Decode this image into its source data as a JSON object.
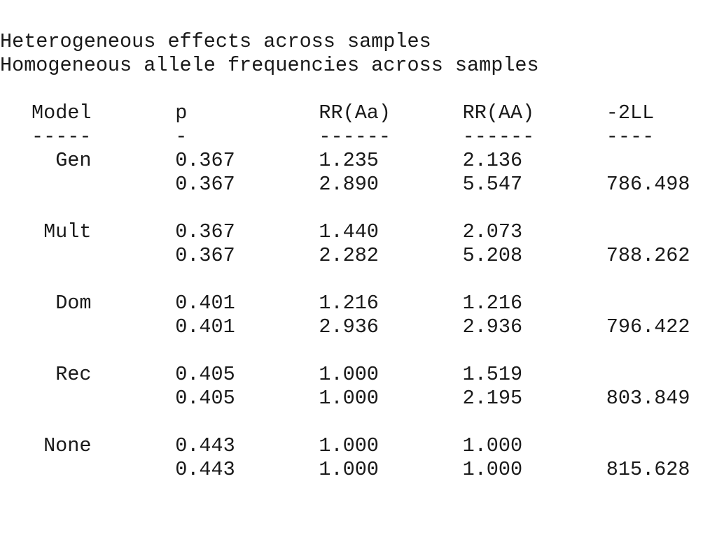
{
  "lines": [
    "Heterogeneous effects across samples",
    "Homogeneous allele frequencies across samples"
  ],
  "table": {
    "header": [
      "Model",
      "p",
      "RR(Aa)",
      "RR(AA)",
      "-2LL"
    ],
    "rule": [
      "-----",
      "-",
      "------",
      "------",
      "----"
    ],
    "groups": [
      {
        "model": "Gen",
        "rows": [
          [
            "0.367",
            "1.235",
            "2.136"
          ],
          [
            "0.367",
            "2.890",
            "5.547",
            "786.498"
          ]
        ]
      },
      {
        "model": "Mult",
        "rows": [
          [
            "0.367",
            "1.440",
            "2.073"
          ],
          [
            "0.367",
            "2.282",
            "5.208",
            "788.262"
          ]
        ]
      },
      {
        "model": "Dom",
        "rows": [
          [
            "0.401",
            "1.216",
            "1.216"
          ],
          [
            "0.401",
            "2.936",
            "2.936",
            "796.422"
          ]
        ]
      },
      {
        "model": "Rec",
        "rows": [
          [
            "0.405",
            "1.000",
            "1.519"
          ],
          [
            "0.405",
            "1.000",
            "2.195",
            "803.849"
          ]
        ]
      },
      {
        "model": "None",
        "rows": [
          [
            "0.443",
            "1.000",
            "1.000"
          ],
          [
            "0.443",
            "1.000",
            "1.000",
            "815.628"
          ]
        ]
      }
    ]
  }
}
